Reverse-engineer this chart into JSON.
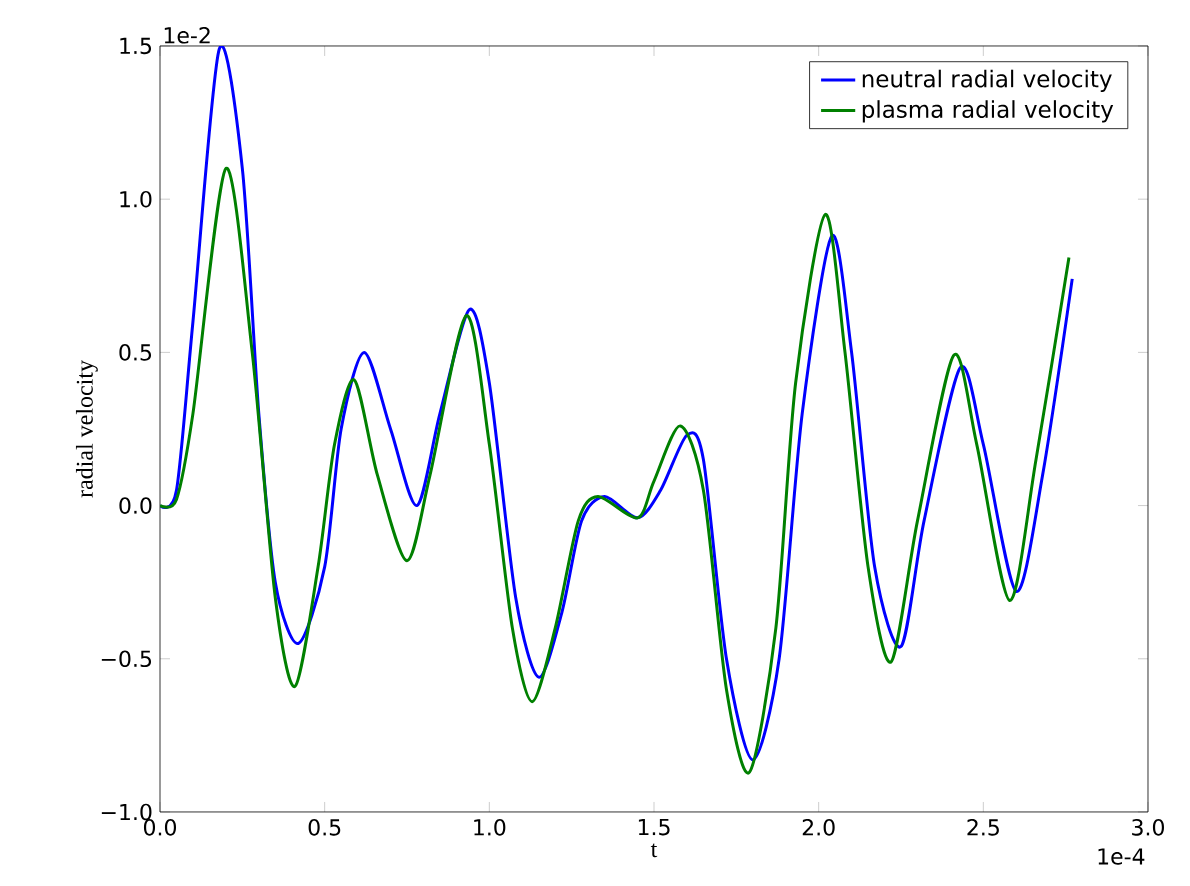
{
  "chart_data": {
    "type": "line",
    "xlabel": "t",
    "ylabel": "radial velocity",
    "annotations": [
      "1e-2",
      "1e-4"
    ],
    "xlim": [
      0,
      3.0
    ],
    "ylim": [
      -1.0,
      1.5
    ],
    "xticks": [
      {
        "value": 0,
        "label": "0.0"
      },
      {
        "value": 0.5,
        "label": "0.5"
      },
      {
        "value": 1,
        "label": "1.0"
      },
      {
        "value": 1.5,
        "label": "1.5"
      },
      {
        "value": 2,
        "label": "2.0"
      },
      {
        "value": 2.5,
        "label": "2.5"
      },
      {
        "value": 3,
        "label": "3.0"
      }
    ],
    "yticks": [
      {
        "value": -1,
        "label": "−1.0"
      },
      {
        "value": -0.5,
        "label": "−0.5"
      },
      {
        "value": 0,
        "label": "0.0"
      },
      {
        "value": 0.5,
        "label": "0.5"
      },
      {
        "value": 1,
        "label": "1.0"
      },
      {
        "value": 1.5,
        "label": "1.5"
      }
    ],
    "legend": "top right",
    "grid": false,
    "series": [
      {
        "name": "neutral radial velocity",
        "color": "#0000ff",
        "x": [
          0,
          0.05,
          0.1,
          0.18,
          0.25,
          0.3,
          0.35,
          0.42,
          0.5,
          0.55,
          0.62,
          0.7,
          0.78,
          0.85,
          0.94,
          1.0,
          1.08,
          1.15,
          1.22,
          1.28,
          1.35,
          1.45,
          1.52,
          1.6,
          1.65,
          1.72,
          1.8,
          1.88,
          1.95,
          2.04,
          2.1,
          2.17,
          2.25,
          2.32,
          2.43,
          2.5,
          2.6,
          2.68,
          2.77
        ],
        "values": [
          0,
          0.05,
          0.6,
          1.49,
          1.1,
          0.3,
          -0.25,
          -0.45,
          -0.2,
          0.25,
          0.5,
          0.25,
          0.0,
          0.3,
          0.64,
          0.4,
          -0.3,
          -0.56,
          -0.35,
          -0.05,
          0.03,
          -0.04,
          0.05,
          0.23,
          0.15,
          -0.5,
          -0.83,
          -0.5,
          0.3,
          0.88,
          0.5,
          -0.2,
          -0.46,
          -0.05,
          0.45,
          0.2,
          -0.28,
          0.1,
          0.74
        ]
      },
      {
        "name": "plasma radial velocity",
        "color": "#008000",
        "x": [
          0,
          0.05,
          0.1,
          0.2,
          0.28,
          0.35,
          0.41,
          0.48,
          0.53,
          0.59,
          0.66,
          0.75,
          0.82,
          0.93,
          1.0,
          1.07,
          1.13,
          1.2,
          1.27,
          1.33,
          1.45,
          1.5,
          1.58,
          1.65,
          1.72,
          1.79,
          1.87,
          1.93,
          2.02,
          2.08,
          2.15,
          2.22,
          2.3,
          2.41,
          2.48,
          2.58,
          2.66,
          2.76
        ],
        "values": [
          0,
          0.02,
          0.3,
          1.1,
          0.5,
          -0.3,
          -0.59,
          -0.2,
          0.2,
          0.41,
          0.1,
          -0.18,
          0.1,
          0.62,
          0.2,
          -0.4,
          -0.64,
          -0.4,
          -0.05,
          0.03,
          -0.04,
          0.08,
          0.26,
          0.05,
          -0.6,
          -0.87,
          -0.4,
          0.4,
          0.95,
          0.5,
          -0.2,
          -0.51,
          -0.05,
          0.49,
          0.2,
          -0.31,
          0.15,
          0.81
        ]
      }
    ]
  }
}
